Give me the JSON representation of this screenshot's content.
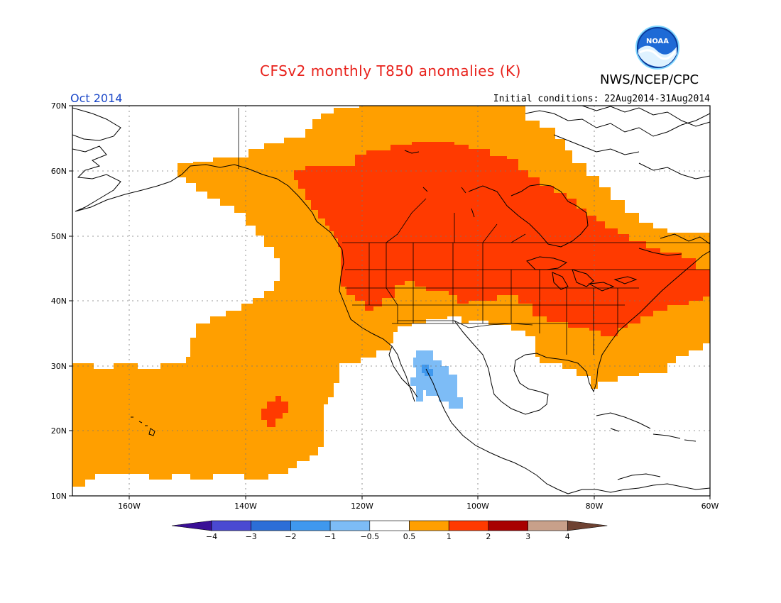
{
  "header": {
    "title": "CFSv2 monthly T850 anomalies (K)",
    "agency": "NWS/NCEP/CPC",
    "logo_text": "NOAA",
    "month": "Oct 2014",
    "initial_conditions": "Initial conditions: 22Aug2014-31Aug2014"
  },
  "map": {
    "lat_labels": [
      "70N",
      "60N",
      "50N",
      "40N",
      "30N",
      "20N",
      "10N"
    ],
    "lon_labels": [
      "160W",
      "140W",
      "120W",
      "100W",
      "80W",
      "60W"
    ],
    "lon_range": [
      -172,
      -60
    ],
    "lat_range": [
      10,
      70
    ]
  },
  "colorbar": {
    "labels": [
      "-4",
      "-3",
      "-2",
      "-1",
      "-0.5",
      "0.5",
      "1",
      "2",
      "3",
      "4"
    ],
    "colors": [
      "#3a0f96",
      "#4a49d2",
      "#2c6ed7",
      "#3f98ee",
      "#7dbcf6",
      "#ffffff",
      "#ff9f00",
      "#ff3a00",
      "#a80000",
      "#c8a08a",
      "#6e4232"
    ]
  },
  "anomaly_colors": {
    "orange": "#ff9f00",
    "red": "#ff3a00",
    "lightblue": "#7dbcf6",
    "blue": "#3f98ee"
  }
}
